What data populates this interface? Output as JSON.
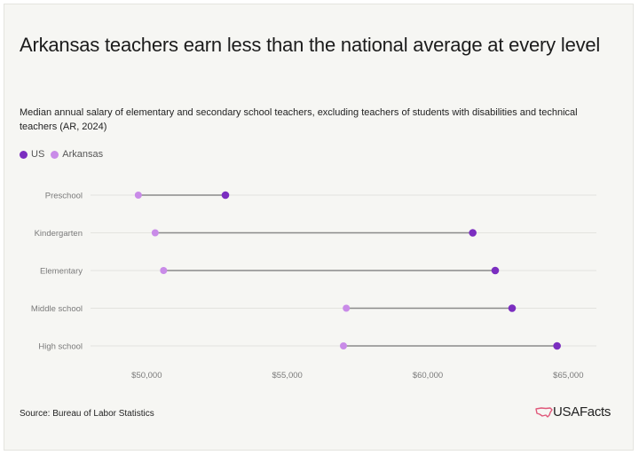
{
  "title": "Arkansas teachers earn less than the national average at every level",
  "subtitle": "Median annual salary of elementary and secondary school teachers, excluding teachers of students with disabilities and technical teachers (AR, 2024)",
  "source": "Source: Bureau of Labor Statistics",
  "logo": {
    "text": "USAFacts",
    "icon": "us-map-icon"
  },
  "colors": {
    "us": "#7b2ec0",
    "arkansas": "#c98be8",
    "connector": "#8a8a8a",
    "grid": "#e3e3df",
    "tick": "#7a7a7a"
  },
  "chart_data": {
    "type": "dumbbell",
    "categories": [
      "Preschool",
      "Kindergarten",
      "Elementary",
      "Middle school",
      "High school"
    ],
    "series": [
      {
        "name": "US",
        "values": [
          52800,
          61600,
          62400,
          63000,
          64600
        ]
      },
      {
        "name": "Arkansas",
        "values": [
          49700,
          50300,
          50600,
          57100,
          57000
        ]
      }
    ],
    "xlim": [
      48000,
      66000
    ],
    "xticks": [
      50000,
      55000,
      60000,
      65000
    ],
    "xtick_labels": [
      "$50,000",
      "$55,000",
      "$60,000",
      "$65,000"
    ],
    "grid": true,
    "legend_position": "top-left"
  }
}
